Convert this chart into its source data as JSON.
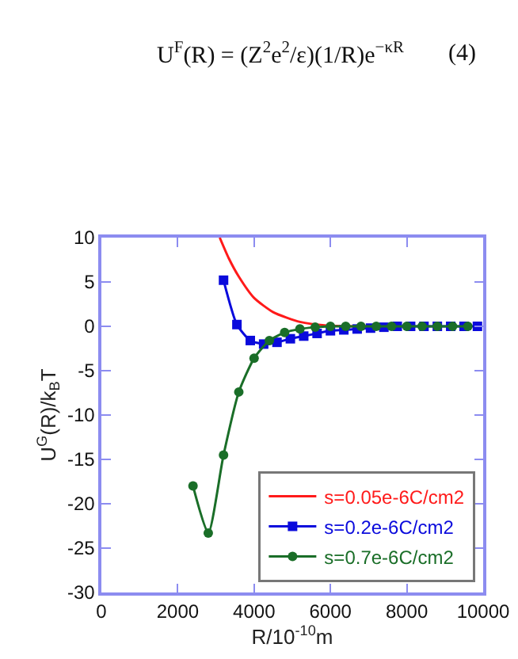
{
  "chart_data": {
    "type": "line",
    "xlabel": "R/10$^{-10}$m",
    "ylabel": "U$^{G}$(R)/k$_{B}$T",
    "annotations": [
      "U$^{F}$(R) = (Z$^{2}$e$^{2}$/ε)(1/R)e$^{−κR}$",
      "(4)"
    ],
    "xlim": [
      0,
      10000
    ],
    "xticks": [
      0,
      2000,
      4000,
      6000,
      8000,
      10000
    ],
    "ylim": [
      -30,
      10
    ],
    "yticks": [
      -30,
      -25,
      -20,
      -15,
      -10,
      -5,
      0,
      5,
      10
    ],
    "legend": "bottom right",
    "series": [
      {
        "name": "s=0.05e-6C/cm2",
        "color": "#ff1a1a",
        "marker": "none",
        "x": [
          3100,
          3333,
          3600,
          4000,
          4500,
          5200,
          5900,
          7000
        ],
        "values": [
          10,
          7.7,
          5.6,
          3.2,
          1.6,
          0.5,
          0.1,
          0
        ]
      },
      {
        "name": "s=0.2e-6C/cm2",
        "color": "#0a0adc",
        "marker": "square",
        "x": [
          3200,
          3550,
          3900,
          4250,
          4600,
          4950,
          5300,
          5650,
          6000,
          6350,
          6700,
          7050,
          7400,
          7750,
          8100,
          8450,
          8800,
          9150,
          9500,
          9850
        ],
        "values": [
          5.2,
          0.2,
          -1.6,
          -2.0,
          -1.8,
          -1.4,
          -1.1,
          -0.8,
          -0.5,
          -0.4,
          -0.3,
          -0.2,
          -0.1,
          0,
          0,
          0,
          0,
          0,
          0,
          0
        ]
      },
      {
        "name": "s=0.7e-6C/cm2",
        "color": "#1a6e28",
        "marker": "circle",
        "x": [
          2400,
          2800,
          3200,
          3600,
          4000,
          4400,
          4800,
          5200,
          5600,
          6000,
          6400,
          6800,
          7200,
          7600,
          8000,
          8400,
          8800,
          9200,
          9600
        ],
        "values": [
          -18,
          -23.3,
          -14.5,
          -7.4,
          -3.6,
          -1.6,
          -0.7,
          -0.3,
          -0.1,
          0,
          0,
          0,
          0,
          0,
          0,
          0,
          0,
          0,
          0
        ]
      }
    ]
  }
}
